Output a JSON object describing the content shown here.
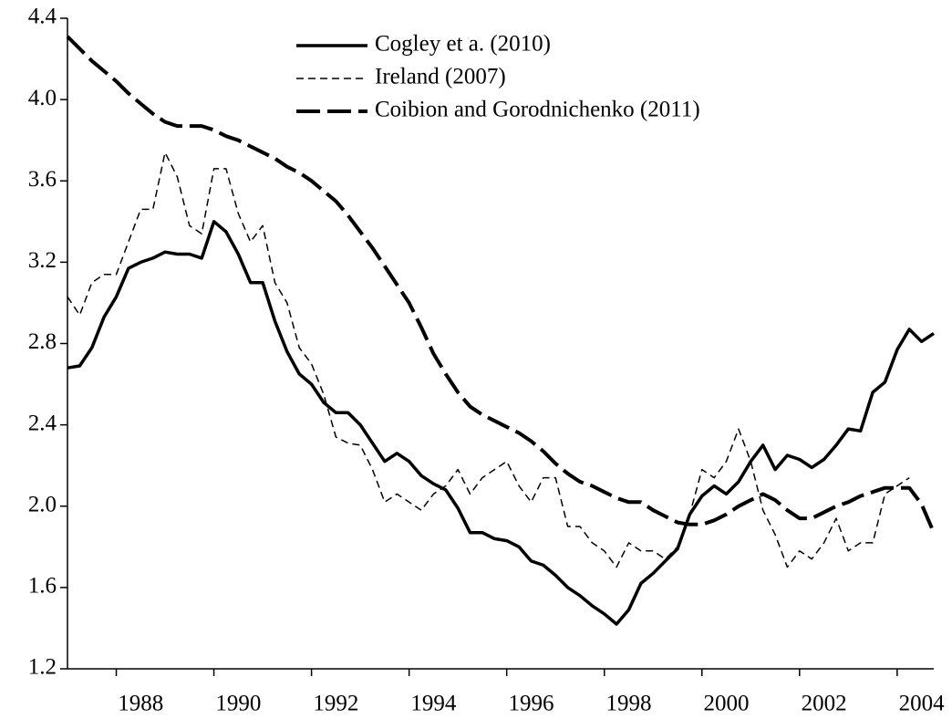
{
  "chart_data": {
    "type": "line",
    "x": [
      1987,
      1987.25,
      1987.5,
      1987.75,
      1988,
      1988.25,
      1988.5,
      1988.75,
      1989,
      1989.25,
      1989.5,
      1989.75,
      1990,
      1990.25,
      1990.5,
      1990.75,
      1991,
      1991.25,
      1991.5,
      1991.75,
      1992,
      1992.25,
      1992.5,
      1992.75,
      1993,
      1993.25,
      1993.5,
      1993.75,
      1994,
      1994.25,
      1994.5,
      1994.75,
      1995,
      1995.25,
      1995.5,
      1995.75,
      1996,
      1996.25,
      1996.5,
      1996.75,
      1997,
      1997.25,
      1997.5,
      1997.75,
      1998,
      1998.25,
      1998.5,
      1998.75,
      1999,
      1999.25,
      1999.5,
      1999.75,
      2000,
      2000.25,
      2000.5,
      2000.75,
      2001,
      2001.25,
      2001.5,
      2001.75,
      2002,
      2002.25,
      2002.5,
      2002.75,
      2003,
      2003.25,
      2003.5,
      2003.75,
      2004,
      2004.25,
      2004.5,
      2004.75
    ],
    "series": [
      {
        "name": "Cogley et a. (2010)",
        "color": "#000000",
        "dash": "solid",
        "values": [
          2.68,
          2.69,
          2.78,
          2.93,
          3.03,
          3.17,
          3.2,
          3.22,
          3.25,
          3.24,
          3.24,
          3.22,
          3.4,
          3.35,
          3.24,
          3.1,
          3.1,
          2.91,
          2.76,
          2.65,
          2.6,
          2.51,
          2.46,
          2.46,
          2.4,
          2.31,
          2.22,
          2.26,
          2.22,
          2.15,
          2.11,
          2.08,
          1.99,
          1.87,
          1.87,
          1.84,
          1.83,
          1.8,
          1.73,
          1.71,
          1.66,
          1.6,
          1.56,
          1.51,
          1.47,
          1.42,
          1.49,
          1.62,
          1.67,
          1.73,
          1.79,
          1.96,
          2.05,
          2.1,
          2.06,
          2.12,
          2.22,
          2.3,
          2.18,
          2.25,
          2.23,
          2.19,
          2.23,
          2.3,
          2.38,
          2.37,
          2.56,
          2.61,
          2.77,
          2.87,
          2.81,
          2.85
        ]
      },
      {
        "name": "Ireland (2007)",
        "color": "#000000",
        "dash": "dashed",
        "values": [
          3.03,
          2.94,
          3.1,
          3.14,
          3.14,
          3.3,
          3.46,
          3.46,
          3.74,
          3.62,
          3.38,
          3.34,
          3.66,
          3.66,
          3.44,
          3.3,
          3.38,
          3.1,
          3.0,
          2.78,
          2.7,
          2.55,
          2.34,
          2.31,
          2.3,
          2.18,
          2.02,
          2.06,
          2.02,
          1.98,
          2.06,
          2.1,
          2.18,
          2.06,
          2.14,
          2.18,
          2.22,
          2.1,
          2.02,
          2.14,
          2.14,
          1.9,
          1.9,
          1.82,
          1.78,
          1.7,
          1.82,
          1.78,
          1.78,
          1.74,
          1.8,
          1.96,
          2.18,
          2.14,
          2.22,
          2.38,
          2.22,
          1.98,
          1.86,
          1.7,
          1.78,
          1.74,
          1.82,
          1.94,
          1.78,
          1.82,
          1.82,
          2.06,
          2.1,
          2.14,
          null,
          null
        ]
      },
      {
        "name": "Coibion and Gorodnichenko (2011)",
        "color": "#000000",
        "dash": "longdash",
        "values": [
          4.31,
          4.25,
          4.19,
          4.14,
          4.09,
          4.03,
          3.98,
          3.93,
          3.89,
          3.87,
          3.87,
          3.87,
          3.85,
          3.82,
          3.8,
          3.77,
          3.74,
          3.71,
          3.67,
          3.64,
          3.6,
          3.55,
          3.5,
          3.43,
          3.35,
          3.27,
          3.18,
          3.09,
          3.0,
          2.88,
          2.75,
          2.65,
          2.56,
          2.49,
          2.45,
          2.42,
          2.39,
          2.36,
          2.32,
          2.27,
          2.21,
          2.16,
          2.12,
          2.1,
          2.07,
          2.04,
          2.02,
          2.02,
          1.98,
          1.95,
          1.92,
          1.91,
          1.91,
          1.93,
          1.96,
          2.0,
          2.03,
          2.06,
          2.03,
          1.98,
          1.94,
          1.94,
          1.97,
          2.0,
          2.02,
          2.05,
          2.07,
          2.09,
          2.09,
          2.09,
          2.01,
          1.87
        ]
      }
    ],
    "xlim": [
      1987,
      2004.75
    ],
    "xticks": [
      1988,
      1990,
      1992,
      1994,
      1996,
      1998,
      2000,
      2002,
      2004
    ],
    "ylim": [
      1.2,
      4.4
    ],
    "yticks": [
      1.2,
      1.6,
      {
        "value": 2,
        "label": "2.0"
      },
      2.4,
      2.8,
      3.2,
      3.6,
      {
        "value": 4,
        "label": "4.0"
      },
      4.4
    ],
    "legend": "top"
  }
}
